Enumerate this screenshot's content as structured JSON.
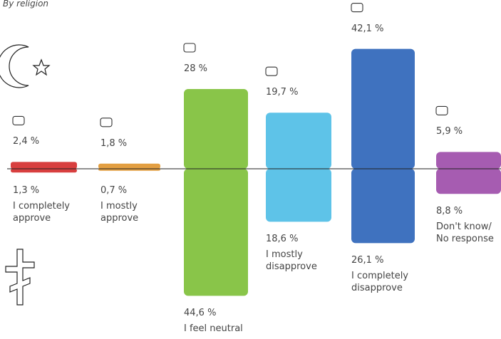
{
  "chart_data": {
    "type": "bar",
    "subtitle": "By religion",
    "categories": [
      "I completely approve",
      "I mostly approve",
      "I feel neutral",
      "I mostly disapprove",
      "I completely disapprove",
      "Don't know/ No response"
    ],
    "colors": [
      "#d42a2a",
      "#e0952e",
      "#7cbf35",
      "#4cbde6",
      "#2a63b8",
      "#9c4aa8"
    ],
    "series": [
      {
        "values": [
          2.4,
          1.8,
          28,
          19.7,
          42.1,
          5.9
        ],
        "value_labels": [
          "2,4 %",
          "1,8 %",
          "28 %",
          "19,7 %",
          "42,1 %",
          "5,9 %"
        ]
      },
      {
        "values": [
          1.3,
          0.7,
          44.6,
          18.6,
          26.1,
          8.8
        ],
        "value_labels": [
          "1,3 %",
          "0,7 %",
          "44,6 %",
          "18,6 %",
          "26,1 %",
          "8,8 %"
        ]
      }
    ]
  }
}
